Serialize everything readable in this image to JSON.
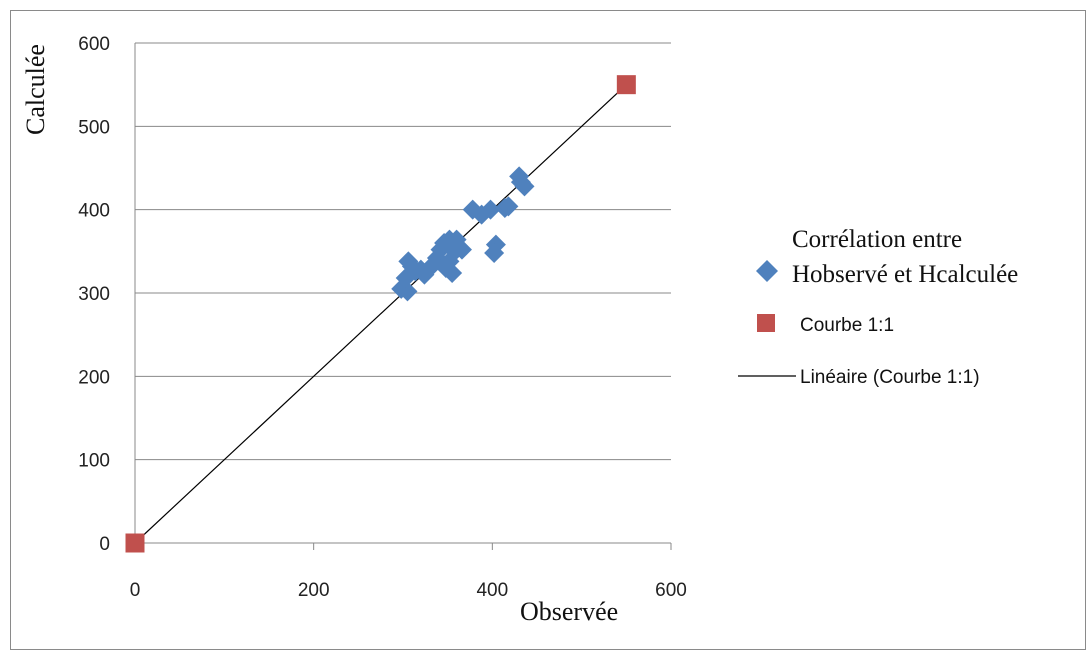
{
  "chart_data": {
    "type": "scatter",
    "xlabel": "Observée",
    "ylabel": "Calculée",
    "xlim": [
      0,
      600
    ],
    "ylim": [
      0,
      600
    ],
    "x_ticks": [
      "0",
      "200",
      "400",
      "600"
    ],
    "y_ticks": [
      "0",
      "100",
      "200",
      "300",
      "400",
      "500",
      "600"
    ],
    "grid": "horizontal",
    "legend_position": "right",
    "series": [
      {
        "name_line1": "Corrélation entre",
        "name_line2": "Hobservé et Hcalculée",
        "marker": "diamond",
        "color": "#4f81bd",
        "points": [
          [
            298,
            305
          ],
          [
            305,
            302
          ],
          [
            303,
            318
          ],
          [
            306,
            338
          ],
          [
            310,
            332
          ],
          [
            314,
            326
          ],
          [
            320,
            328
          ],
          [
            324,
            322
          ],
          [
            330,
            330
          ],
          [
            338,
            342
          ],
          [
            342,
            352
          ],
          [
            346,
            360
          ],
          [
            348,
            330
          ],
          [
            352,
            338
          ],
          [
            355,
            324
          ],
          [
            358,
            350
          ],
          [
            362,
            356
          ],
          [
            366,
            352
          ],
          [
            360,
            364
          ],
          [
            352,
            364
          ],
          [
            378,
            400
          ],
          [
            388,
            394
          ],
          [
            398,
            400
          ],
          [
            404,
            358
          ],
          [
            402,
            348
          ],
          [
            414,
            402
          ],
          [
            418,
            404
          ],
          [
            430,
            440
          ],
          [
            432,
            433
          ],
          [
            436,
            428
          ]
        ]
      },
      {
        "name": "Courbe 1:1",
        "marker": "square",
        "color": "#c0504d",
        "points": [
          [
            0,
            0
          ],
          [
            550,
            550
          ]
        ]
      },
      {
        "name": "Linéaire (Courbe 1:1)",
        "type": "trendline",
        "color": "#000000",
        "from": [
          0,
          0
        ],
        "to": [
          550,
          550
        ]
      }
    ]
  }
}
